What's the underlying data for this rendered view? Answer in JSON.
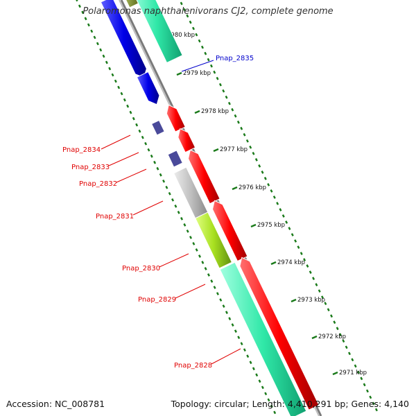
{
  "title": "Polaromonas naphthalenivorans CJ2, complete genome",
  "footer": {
    "accession": "Accession: NC_008781",
    "summary": "Topology: circular; Length: 4,410,291 bp; Genes: 4,140"
  },
  "colors": {
    "forward_label": "#e00000",
    "reverse_label": "#0000cc",
    "backbone": "#888888",
    "ticks": "#1a7a1a"
  },
  "ticks": [
    "2980 kbp",
    "2979 kbp",
    "2978 kbp",
    "2977 kbp",
    "2976 kbp",
    "2975 kbp",
    "2974 kbp",
    "2973 kbp",
    "2972 kbp",
    "2971 kbp"
  ],
  "genes": [
    {
      "label": "Pnap_2835",
      "color": "#1010e0"
    },
    {
      "label": "Pnap_2834",
      "color": "#4a4a9a"
    },
    {
      "label": "Pnap_2833",
      "color": "#4a4a9a"
    },
    {
      "label": "Pnap_2832",
      "color": "#ff0000"
    },
    {
      "label": "Pnap_2831",
      "color": "#c0c0c0"
    },
    {
      "label": "Pnap_2830",
      "color": "#a8e020"
    },
    {
      "label": "Pnap_2829",
      "color": "#ff0000"
    },
    {
      "label": "Pnap_2828",
      "color": "#30e8a8"
    }
  ]
}
